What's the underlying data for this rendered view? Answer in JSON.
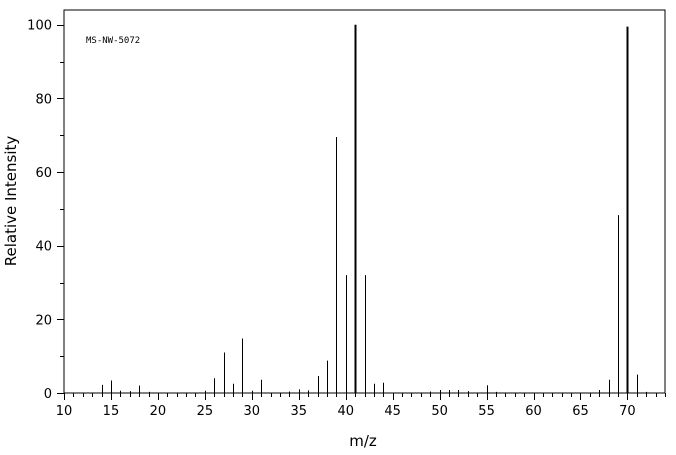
{
  "chart_data": {
    "type": "bar",
    "annotation": "MS-NW-5072",
    "xlabel": "m/z",
    "ylabel": "Relative Intensity",
    "xlim": [
      10,
      74
    ],
    "ylim": [
      0,
      104
    ],
    "xticks_major": [
      10,
      15,
      20,
      25,
      30,
      35,
      40,
      45,
      50,
      55,
      60,
      65,
      70
    ],
    "yticks_major": [
      0,
      20,
      40,
      60,
      80,
      100
    ],
    "grid": false,
    "legend": "none",
    "peaks": [
      {
        "mz": 14,
        "intensity": 2.2
      },
      {
        "mz": 15,
        "intensity": 3.4
      },
      {
        "mz": 16,
        "intensity": 0.6
      },
      {
        "mz": 17,
        "intensity": 0.5
      },
      {
        "mz": 18,
        "intensity": 2.0
      },
      {
        "mz": 19,
        "intensity": 0.3
      },
      {
        "mz": 25,
        "intensity": 0.6
      },
      {
        "mz": 26,
        "intensity": 4.0
      },
      {
        "mz": 27,
        "intensity": 11.0
      },
      {
        "mz": 28,
        "intensity": 2.5
      },
      {
        "mz": 29,
        "intensity": 14.8
      },
      {
        "mz": 30,
        "intensity": 0.6
      },
      {
        "mz": 31,
        "intensity": 3.6
      },
      {
        "mz": 34,
        "intensity": 0.4
      },
      {
        "mz": 35,
        "intensity": 1.0
      },
      {
        "mz": 36,
        "intensity": 0.7
      },
      {
        "mz": 37,
        "intensity": 4.6
      },
      {
        "mz": 38,
        "intensity": 8.8
      },
      {
        "mz": 39,
        "intensity": 69.5
      },
      {
        "mz": 40,
        "intensity": 32.0
      },
      {
        "mz": 41,
        "intensity": 100.0
      },
      {
        "mz": 42,
        "intensity": 32.0
      },
      {
        "mz": 43,
        "intensity": 2.5
      },
      {
        "mz": 44,
        "intensity": 2.8
      },
      {
        "mz": 49,
        "intensity": 0.4
      },
      {
        "mz": 50,
        "intensity": 0.8
      },
      {
        "mz": 51,
        "intensity": 0.8
      },
      {
        "mz": 52,
        "intensity": 0.8
      },
      {
        "mz": 53,
        "intensity": 0.5
      },
      {
        "mz": 55,
        "intensity": 2.1
      },
      {
        "mz": 56,
        "intensity": 0.3
      },
      {
        "mz": 67,
        "intensity": 0.8
      },
      {
        "mz": 68,
        "intensity": 3.6
      },
      {
        "mz": 69,
        "intensity": 48.3
      },
      {
        "mz": 70,
        "intensity": 99.5
      },
      {
        "mz": 71,
        "intensity": 5.0
      },
      {
        "mz": 72,
        "intensity": 0.3
      }
    ]
  }
}
